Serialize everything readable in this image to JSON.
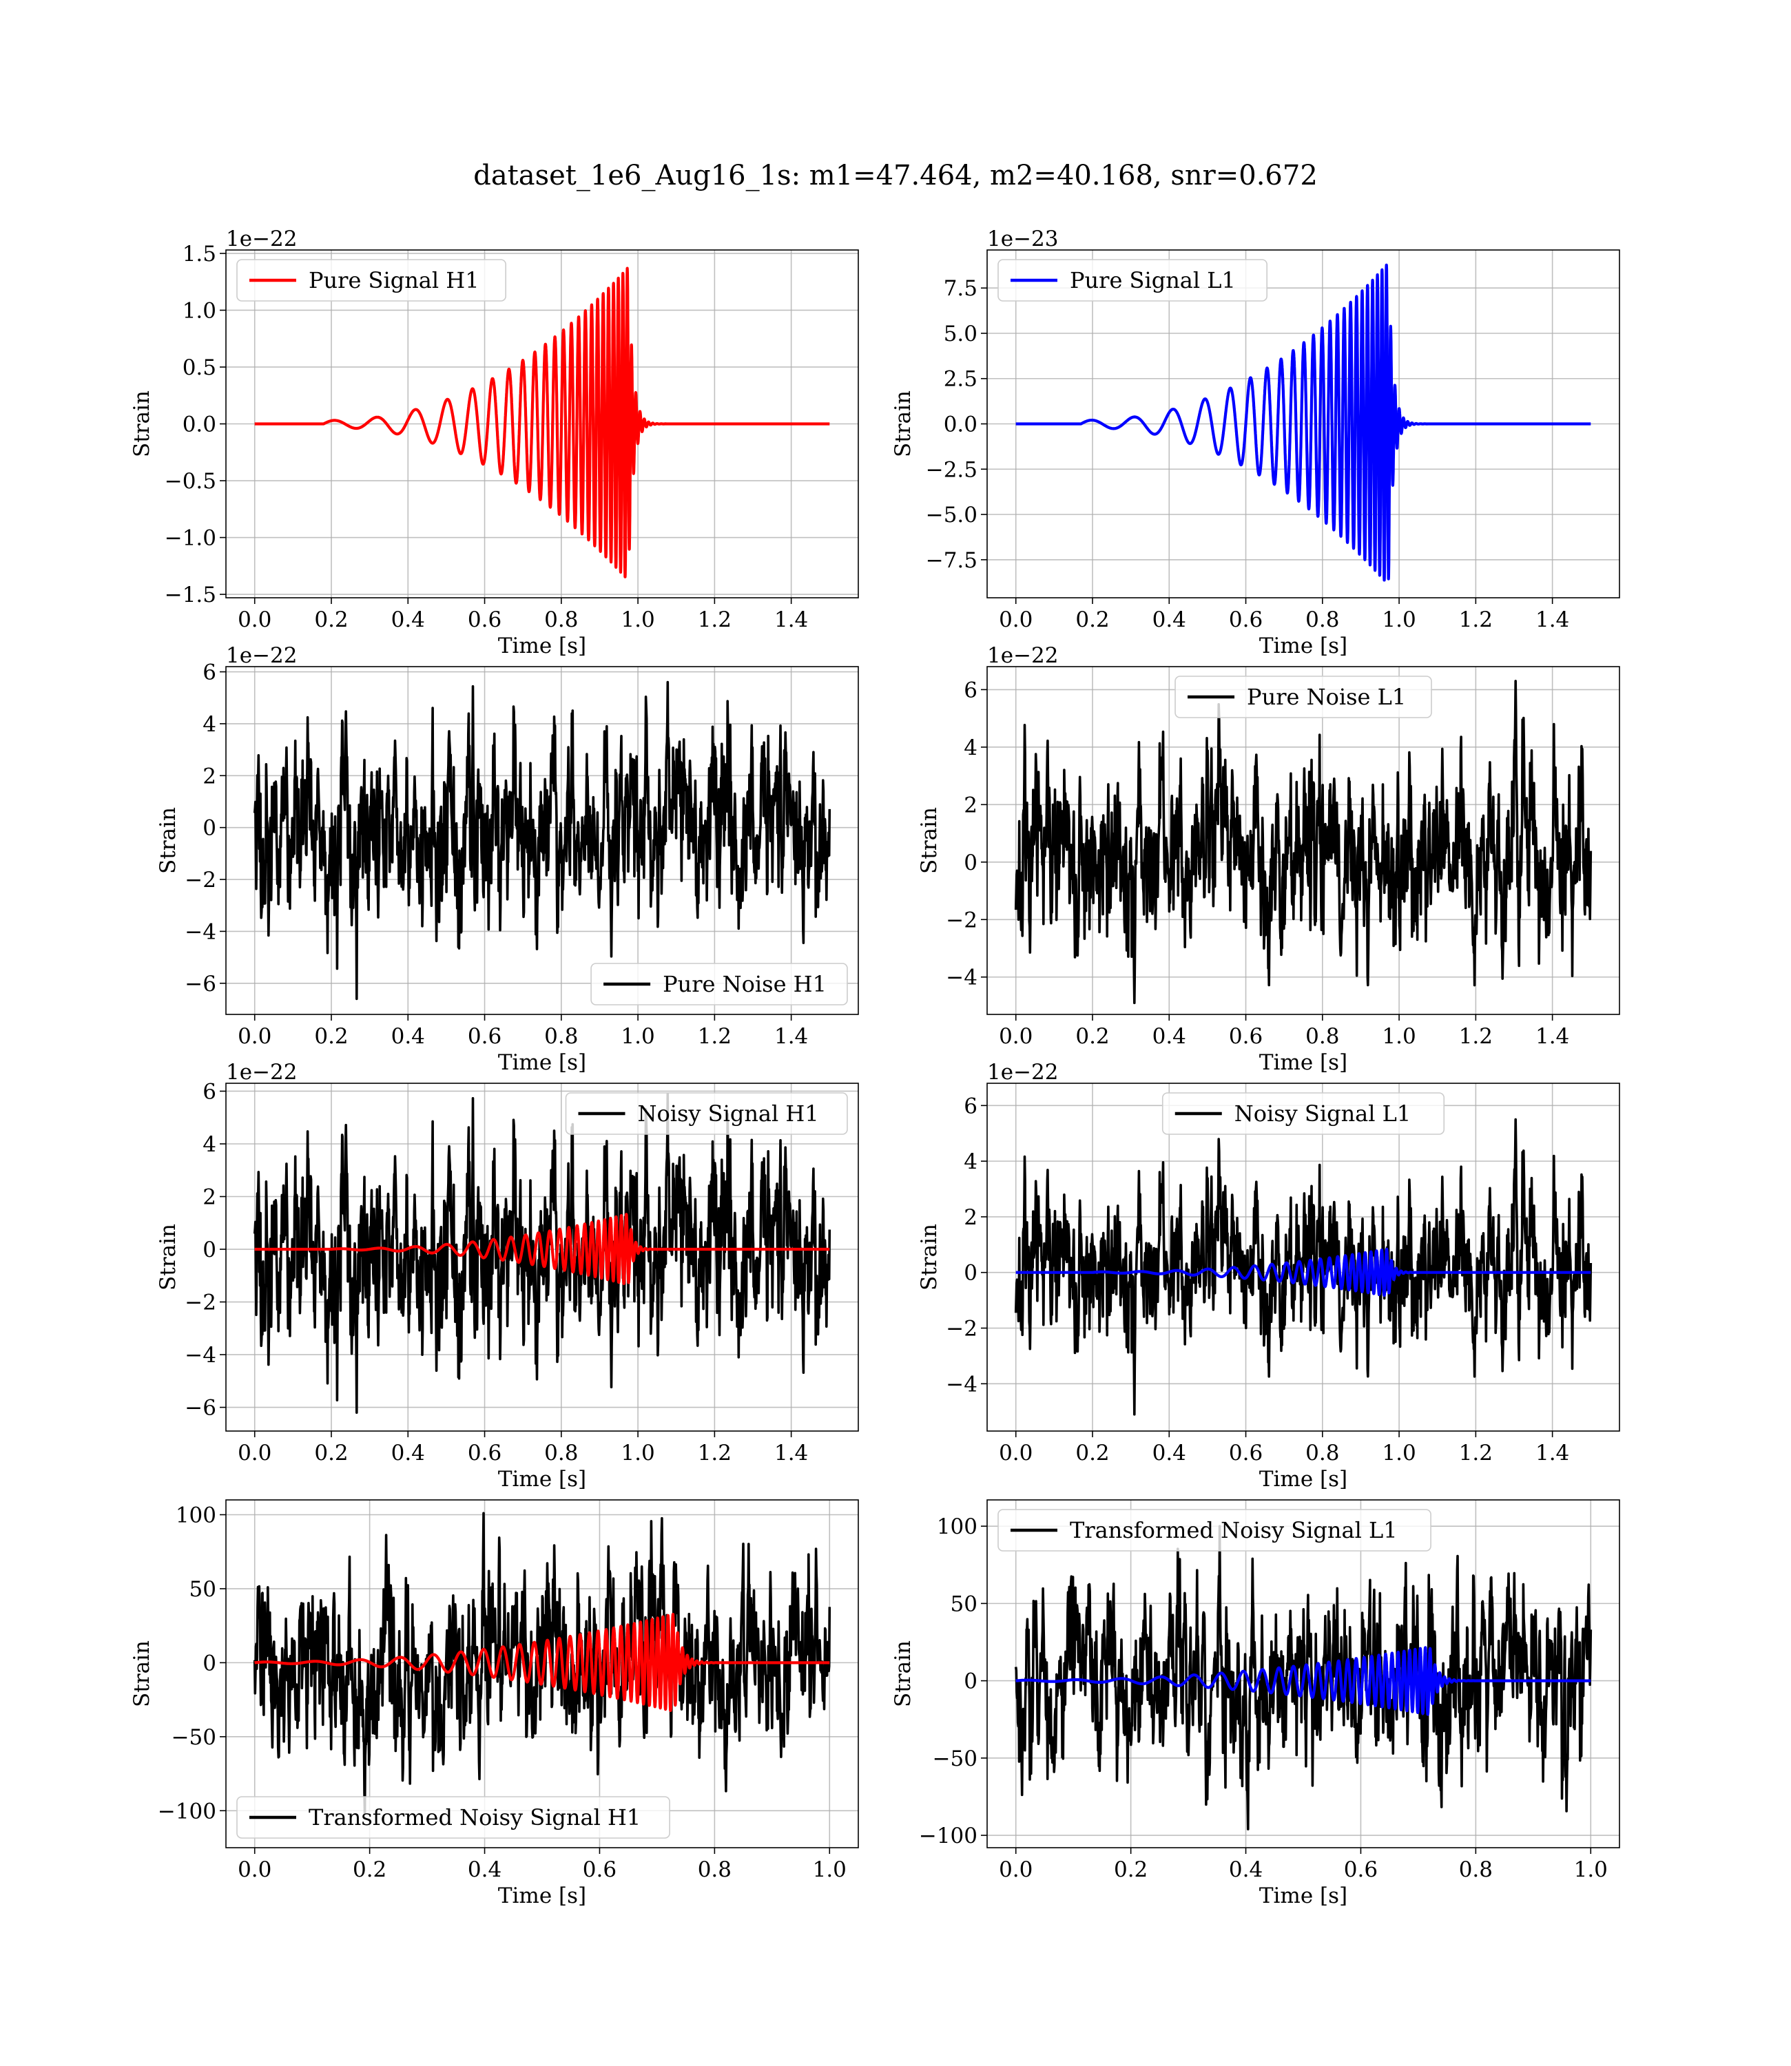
{
  "figure": {
    "title": "dataset_1e6_Aug16_1s: m1=47.464, m2=40.168, snr=0.672"
  },
  "colors": {
    "red": "#ff0000",
    "blue": "#0000ff",
    "black": "#000000"
  },
  "chart_data": [
    {
      "id": "h1-signal",
      "type": "line",
      "xlabel": "Time [s]",
      "ylabel": "Strain",
      "offset_text": "1e−22",
      "xlim": [
        -0.075,
        1.575
      ],
      "ylim": [
        -1.53,
        1.53
      ],
      "xticks": [
        0.0,
        0.2,
        0.4,
        0.6,
        0.8,
        1.0,
        1.2,
        1.4
      ],
      "xtick_labels": [
        "0.0",
        "0.2",
        "0.4",
        "0.6",
        "0.8",
        "1.0",
        "1.2",
        "1.4"
      ],
      "yticks": [
        -1.5,
        -1.0,
        -0.5,
        0.0,
        0.5,
        1.0,
        1.5
      ],
      "ytick_labels": [
        "−1.5",
        "−1.0",
        "−0.5",
        "0.0",
        "0.5",
        "1.0",
        "1.5"
      ],
      "grid": true,
      "legend_position": "top-left",
      "series": [
        {
          "name": "Pure Signal H1",
          "color": "#ff0000",
          "kind": "chirp",
          "x_range": [
            0,
            1.5
          ],
          "onset": 0.18,
          "merger": 0.975,
          "freq_start": 9,
          "freq_end": 90,
          "amp_start": 0.03,
          "amp_peak": 1.38,
          "ringdown": 0.012
        }
      ]
    },
    {
      "id": "l1-signal",
      "type": "line",
      "xlabel": "Time [s]",
      "ylabel": "Strain",
      "offset_text": "1e−23",
      "xlim": [
        -0.075,
        1.575
      ],
      "ylim": [
        -9.6,
        9.6
      ],
      "xticks": [
        0.0,
        0.2,
        0.4,
        0.6,
        0.8,
        1.0,
        1.2,
        1.4
      ],
      "xtick_labels": [
        "0.0",
        "0.2",
        "0.4",
        "0.6",
        "0.8",
        "1.0",
        "1.2",
        "1.4"
      ],
      "yticks": [
        -7.5,
        -5.0,
        -2.5,
        0.0,
        2.5,
        5.0,
        7.5
      ],
      "ytick_labels": [
        "−7.5",
        "−5.0",
        "−2.5",
        "0.0",
        "2.5",
        "5.0",
        "7.5"
      ],
      "grid": true,
      "legend_position": "top-left",
      "series": [
        {
          "name": "Pure Signal L1",
          "color": "#0000ff",
          "kind": "chirp",
          "x_range": [
            0,
            1.5
          ],
          "onset": 0.17,
          "merger": 0.972,
          "freq_start": 9,
          "freq_end": 90,
          "amp_start": 0.2,
          "amp_peak": 8.9,
          "ringdown": 0.012
        }
      ]
    },
    {
      "id": "h1-noise",
      "type": "line",
      "xlabel": "Time [s]",
      "ylabel": "Strain",
      "offset_text": "1e−22",
      "xlim": [
        -0.075,
        1.575
      ],
      "ylim": [
        -7.2,
        6.2
      ],
      "xticks": [
        0.0,
        0.2,
        0.4,
        0.6,
        0.8,
        1.0,
        1.2,
        1.4
      ],
      "xtick_labels": [
        "0.0",
        "0.2",
        "0.4",
        "0.6",
        "0.8",
        "1.0",
        "1.2",
        "1.4"
      ],
      "yticks": [
        -6,
        -4,
        -2,
        0,
        2,
        4,
        6
      ],
      "ytick_labels": [
        "−6",
        "−4",
        "−2",
        "0",
        "2",
        "4",
        "6"
      ],
      "grid": true,
      "legend_position": "bottom-right",
      "series": [
        {
          "name": "Pure Noise H1",
          "color": "#000000",
          "kind": "noise",
          "x_range": [
            0,
            1.5
          ],
          "n": 1500,
          "sigma": 1.55,
          "ymin": -6.6,
          "ymax": 5.6,
          "seed": 11
        }
      ]
    },
    {
      "id": "l1-noise",
      "type": "line",
      "xlabel": "Time [s]",
      "ylabel": "Strain",
      "offset_text": "1e−22",
      "xlim": [
        -0.075,
        1.575
      ],
      "ylim": [
        -5.3,
        6.8
      ],
      "xticks": [
        0.0,
        0.2,
        0.4,
        0.6,
        0.8,
        1.0,
        1.2,
        1.4
      ],
      "xtick_labels": [
        "0.0",
        "0.2",
        "0.4",
        "0.6",
        "0.8",
        "1.0",
        "1.2",
        "1.4"
      ],
      "yticks": [
        -4,
        -2,
        0,
        2,
        4,
        6
      ],
      "ytick_labels": [
        "−4",
        "−2",
        "0",
        "2",
        "4",
        "6"
      ],
      "grid": true,
      "legend_position": "top-center",
      "series": [
        {
          "name": "Pure Noise L1",
          "color": "#000000",
          "kind": "noise",
          "x_range": [
            0,
            1.5
          ],
          "n": 1500,
          "sigma": 1.35,
          "ymin": -4.9,
          "ymax": 6.3,
          "seed": 23
        }
      ]
    },
    {
      "id": "h1-noisy",
      "type": "line",
      "xlabel": "Time [s]",
      "ylabel": "Strain",
      "offset_text": "1e−22",
      "xlim": [
        -0.075,
        1.575
      ],
      "ylim": [
        -6.9,
        6.3
      ],
      "xticks": [
        0.0,
        0.2,
        0.4,
        0.6,
        0.8,
        1.0,
        1.2,
        1.4
      ],
      "xtick_labels": [
        "0.0",
        "0.2",
        "0.4",
        "0.6",
        "0.8",
        "1.0",
        "1.2",
        "1.4"
      ],
      "yticks": [
        -6,
        -4,
        -2,
        0,
        2,
        4,
        6
      ],
      "ytick_labels": [
        "−6",
        "−4",
        "−2",
        "0",
        "2",
        "4",
        "6"
      ],
      "grid": true,
      "legend_position": "top-right",
      "series": [
        {
          "name": "Noisy Signal H1",
          "color": "#000000",
          "kind": "noise",
          "x_range": [
            0,
            1.5
          ],
          "n": 1500,
          "sigma": 1.55,
          "ymin": -6.2,
          "ymax": 5.9,
          "seed": 11
        },
        {
          "name": "",
          "color": "#ff0000",
          "kind": "chirp",
          "x_range": [
            0,
            1.5
          ],
          "onset": 0.2,
          "merger": 0.975,
          "freq_start": 10,
          "freq_end": 80,
          "amp_start": 0.02,
          "amp_peak": 1.35,
          "ringdown": 0.012
        }
      ]
    },
    {
      "id": "l1-noisy",
      "type": "line",
      "xlabel": "Time [s]",
      "ylabel": "Strain",
      "offset_text": "1e−22",
      "xlim": [
        -0.075,
        1.575
      ],
      "ylim": [
        -5.7,
        6.8
      ],
      "xticks": [
        0.0,
        0.2,
        0.4,
        0.6,
        0.8,
        1.0,
        1.2,
        1.4
      ],
      "xtick_labels": [
        "0.0",
        "0.2",
        "0.4",
        "0.6",
        "0.8",
        "1.0",
        "1.2",
        "1.4"
      ],
      "yticks": [
        -4,
        -2,
        0,
        2,
        4,
        6
      ],
      "ytick_labels": [
        "−4",
        "−2",
        "0",
        "2",
        "4",
        "6"
      ],
      "grid": true,
      "legend_position": "top-center",
      "series": [
        {
          "name": "Noisy Signal L1",
          "color": "#000000",
          "kind": "noise",
          "x_range": [
            0,
            1.5
          ],
          "n": 1500,
          "sigma": 1.35,
          "ymin": -5.1,
          "ymax": 5.5,
          "seed": 23
        },
        {
          "name": "",
          "color": "#0000ff",
          "kind": "chirp",
          "x_range": [
            0,
            1.5
          ],
          "onset": 0.2,
          "merger": 0.972,
          "freq_start": 10,
          "freq_end": 80,
          "amp_start": 0.02,
          "amp_peak": 0.85,
          "ringdown": 0.012
        }
      ]
    },
    {
      "id": "h1-transformed",
      "type": "line",
      "xlabel": "Time [s]",
      "ylabel": "Strain",
      "offset_text": "",
      "xlim": [
        -0.05,
        1.05
      ],
      "ylim": [
        -125,
        110
      ],
      "xticks": [
        0.0,
        0.2,
        0.4,
        0.6,
        0.8,
        1.0
      ],
      "xtick_labels": [
        "0.0",
        "0.2",
        "0.4",
        "0.6",
        "0.8",
        "1.0"
      ],
      "yticks": [
        -100,
        -50,
        0,
        50,
        100
      ],
      "ytick_labels": [
        "−100",
        "−50",
        "0",
        "50",
        "100"
      ],
      "grid": true,
      "legend_position": "bottom-left",
      "series": [
        {
          "name": "Transformed Noisy Signal H1",
          "color": "#000000",
          "kind": "noise",
          "x_range": [
            0,
            1.0
          ],
          "n": 1400,
          "sigma": 28,
          "ymin": -102,
          "ymax": 101,
          "seed": 37
        },
        {
          "name": "",
          "color": "#ff0000",
          "kind": "chirp",
          "x_range": [
            0,
            1.0
          ],
          "onset": 0.0,
          "merger": 0.73,
          "freq_start": 12,
          "freq_end": 120,
          "amp_start": 0.5,
          "amp_peak": 33,
          "ringdown": 0.012
        }
      ]
    },
    {
      "id": "l1-transformed",
      "type": "line",
      "xlabel": "Time [s]",
      "ylabel": "Strain",
      "offset_text": "",
      "xlim": [
        -0.05,
        1.05
      ],
      "ylim": [
        -108,
        117
      ],
      "xticks": [
        0.0,
        0.2,
        0.4,
        0.6,
        0.8,
        1.0
      ],
      "xtick_labels": [
        "0.0",
        "0.2",
        "0.4",
        "0.6",
        "0.8",
        "1.0"
      ],
      "yticks": [
        -100,
        -50,
        0,
        50,
        100
      ],
      "ytick_labels": [
        "−100",
        "−50",
        "0",
        "50",
        "100"
      ],
      "grid": true,
      "legend_position": "top-left",
      "series": [
        {
          "name": "Transformed Noisy Signal L1",
          "color": "#000000",
          "kind": "noise",
          "x_range": [
            0,
            1.0
          ],
          "n": 1400,
          "sigma": 26,
          "ymin": -96,
          "ymax": 100,
          "seed": 53
        },
        {
          "name": "",
          "color": "#0000ff",
          "kind": "chirp",
          "x_range": [
            0,
            1.0
          ],
          "onset": 0.0,
          "merger": 0.72,
          "freq_start": 12,
          "freq_end": 120,
          "amp_start": 0.4,
          "amp_peak": 22,
          "ringdown": 0.012
        }
      ]
    }
  ]
}
